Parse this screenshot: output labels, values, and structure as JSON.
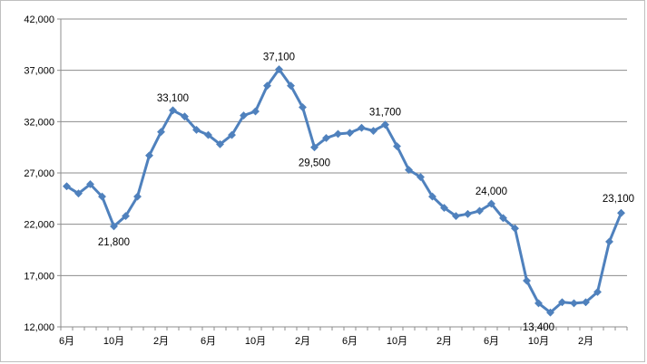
{
  "chart_data": {
    "type": "line",
    "title": "",
    "xlabel": "",
    "ylabel": "",
    "ylim": [
      12000,
      42000
    ],
    "yticks": [
      12000,
      17000,
      22000,
      27000,
      32000,
      37000,
      42000
    ],
    "ytick_labels": [
      "12,000",
      "17,000",
      "22,000",
      "27,000",
      "32,000",
      "37,000",
      "42,000"
    ],
    "grid": "horizontal",
    "legend": "none",
    "line_color": "#4f81bd",
    "marker": "diamond",
    "xtick_labels": [
      "6月",
      "10月",
      "2月",
      "6月",
      "10月",
      "2月",
      "6月",
      "10月",
      "2月",
      "6月",
      "10月",
      "2月"
    ],
    "xtick_every": 4,
    "values": [
      25700,
      25000,
      25900,
      24700,
      21800,
      22800,
      24700,
      28700,
      31000,
      33100,
      32500,
      31200,
      30700,
      29800,
      30700,
      32600,
      33000,
      35500,
      37100,
      35500,
      33400,
      29500,
      30400,
      30800,
      30900,
      31400,
      31100,
      31700,
      29600,
      27300,
      26600,
      24700,
      23600,
      22800,
      23000,
      23300,
      24000,
      22600,
      21600,
      16500,
      14300,
      13400,
      14400,
      14300,
      14400,
      15400,
      20300,
      23100
    ],
    "data_labels": [
      {
        "index": 4,
        "text": "21,800",
        "pos": "below"
      },
      {
        "index": 9,
        "text": "33,100",
        "pos": "above"
      },
      {
        "index": 18,
        "text": "37,100",
        "pos": "above"
      },
      {
        "index": 21,
        "text": "29,500",
        "pos": "below"
      },
      {
        "index": 27,
        "text": "31,700",
        "pos": "above"
      },
      {
        "index": 36,
        "text": "24,000",
        "pos": "above"
      },
      {
        "index": 41,
        "text": "13,400",
        "pos": "below-left"
      },
      {
        "index": 47,
        "text": "23,100",
        "pos": "above-left"
      }
    ]
  }
}
